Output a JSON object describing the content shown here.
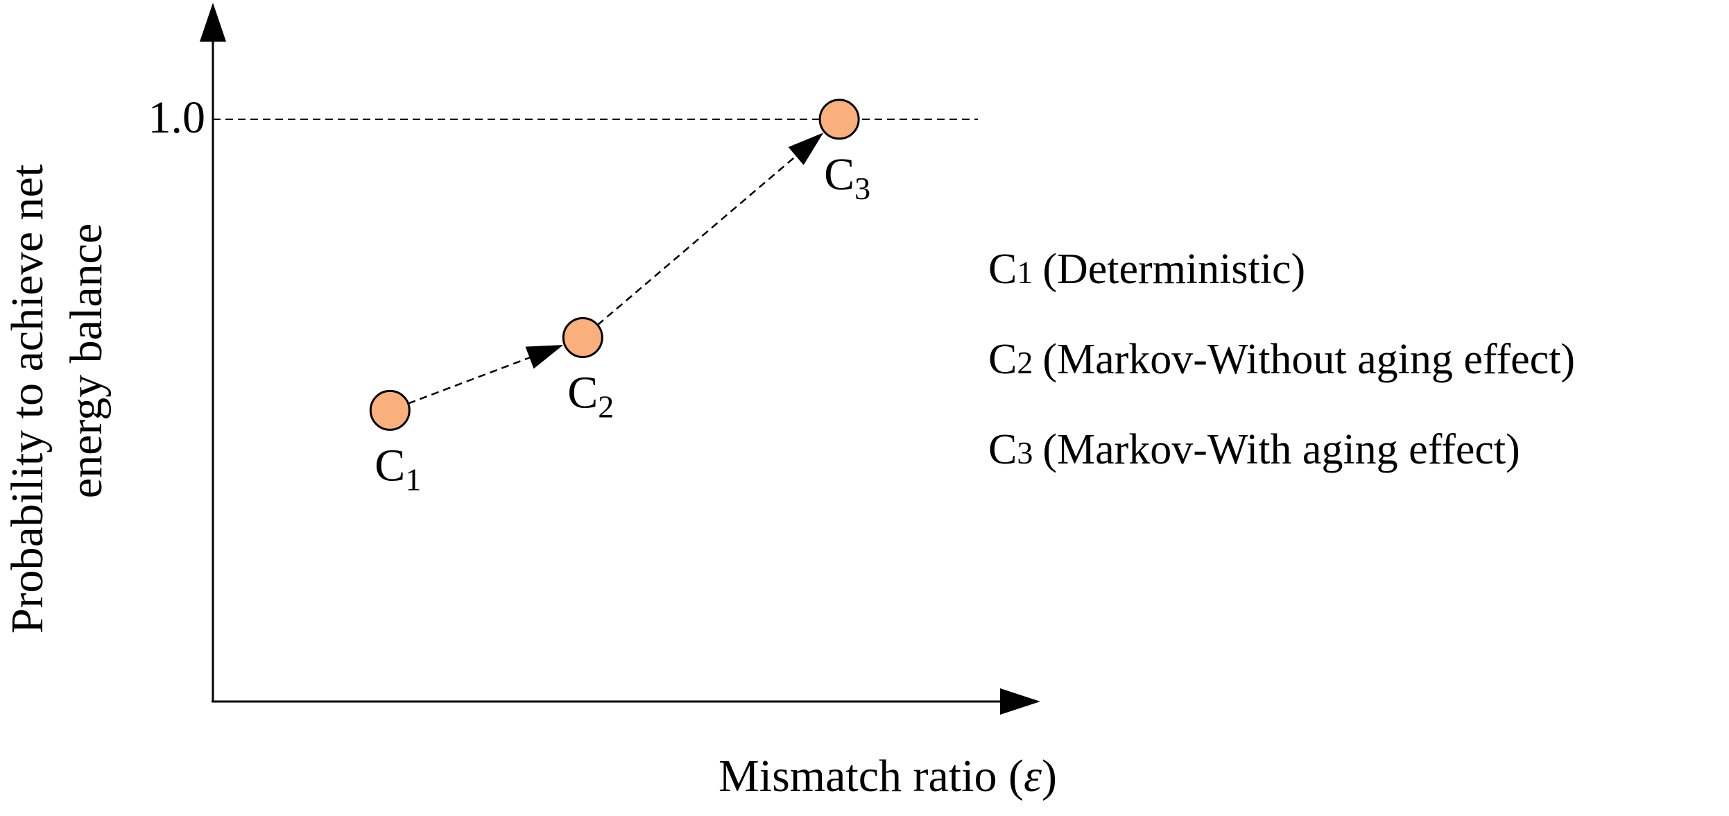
{
  "chart_data": {
    "type": "scatter",
    "title": "",
    "xlabel": "Mismatch ratio (ε)",
    "xlabel_parts": {
      "text": "Mismatch ratio (",
      "symbol": "ε",
      "close": ")"
    },
    "ylabel_lines": [
      "Probability to achieve net",
      "energy balance"
    ],
    "y_tick_label": "1.0",
    "y_reference_value": 1.0,
    "xlim": [
      0,
      1
    ],
    "ylim": [
      0,
      1.2
    ],
    "points": [
      {
        "id": "C1",
        "letter": "C",
        "sub": "1",
        "x": 0.214,
        "y": 0.5
      },
      {
        "id": "C2",
        "letter": "C",
        "sub": "2",
        "x": 0.447,
        "y": 0.625
      },
      {
        "id": "C3",
        "letter": "C",
        "sub": "3",
        "x": 0.757,
        "y": 1.0
      }
    ],
    "transitions": [
      [
        "C1",
        "C2"
      ],
      [
        "C2",
        "C3"
      ]
    ],
    "legend": [
      {
        "letter": "C",
        "sub": "1",
        "text": "(Deterministic)"
      },
      {
        "letter": "C",
        "sub": "2",
        "text": "(Markov-Without aging effect)"
      },
      {
        "letter": "C",
        "sub": "3",
        "text": "(Markov-With aging effect)"
      }
    ],
    "colors": {
      "marker_fill": "#F9B07C",
      "marker_stroke": "#000000",
      "line": "#000000"
    }
  }
}
